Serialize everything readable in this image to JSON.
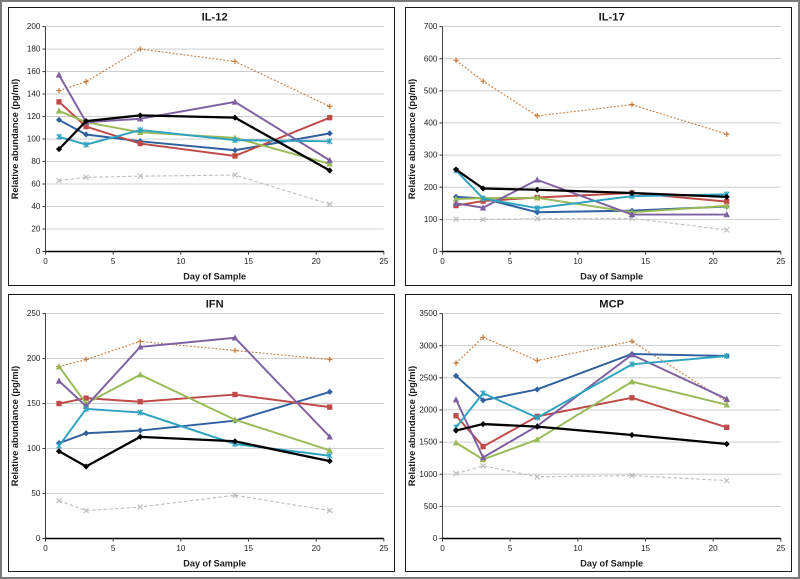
{
  "figure": {
    "background": "#ffffff",
    "outer_border_color": "#7a7a7a",
    "panel_border_color": "#1a1a1a",
    "gridline_color": "#c6c6c6",
    "axis_color": "#404040"
  },
  "chart_data": [
    {
      "type": "line",
      "title": "IL-12",
      "xlabel": "Day of Sample",
      "ylabel": "Relative abundance (pg/ml)",
      "x": [
        1,
        3,
        7,
        14,
        21
      ],
      "xlim": [
        0,
        25
      ],
      "xticks": [
        0,
        5,
        10,
        15,
        20,
        25
      ],
      "ylim": [
        0,
        200
      ],
      "ytick_step": 20,
      "grid": true,
      "legend": "none",
      "series": [
        {
          "name": "gray-dashed",
          "color": "#bfbfbf",
          "marker": "x",
          "line": "dashed",
          "values": [
            63,
            66,
            67,
            68,
            42
          ]
        },
        {
          "name": "orange-dotted",
          "color": "#c87a3b",
          "marker": "plus",
          "line": "dotted",
          "values": [
            143,
            151,
            180,
            169,
            129
          ]
        },
        {
          "name": "blue",
          "color": "#30609f",
          "marker": "diamond",
          "line": "solid",
          "values": [
            117,
            104,
            98,
            90,
            105
          ]
        },
        {
          "name": "red",
          "color": "#be4b48",
          "marker": "square",
          "line": "solid",
          "values": [
            133,
            111,
            96,
            85,
            119
          ]
        },
        {
          "name": "green",
          "color": "#9aba58",
          "marker": "triangle",
          "line": "solid",
          "values": [
            125,
            115,
            106,
            101,
            78
          ]
        },
        {
          "name": "purple",
          "color": "#7d60a0",
          "marker": "triangle",
          "line": "solid",
          "values": [
            157,
            115,
            118,
            133,
            81
          ]
        },
        {
          "name": "teal",
          "color": "#2fa3c0",
          "marker": "star",
          "line": "solid",
          "values": [
            102,
            95,
            108,
            99,
            98
          ]
        },
        {
          "name": "black",
          "color": "#000000",
          "marker": "diamond",
          "line": "solid",
          "values": [
            91,
            116,
            121,
            119,
            72
          ]
        }
      ]
    },
    {
      "type": "line",
      "title": "IL-17",
      "xlabel": "Day of Sample",
      "ylabel": "Relative abundance (pg/ml)",
      "x": [
        1,
        3,
        7,
        14,
        21
      ],
      "xlim": [
        0,
        25
      ],
      "xticks": [
        0,
        5,
        10,
        15,
        20,
        25
      ],
      "ylim": [
        0,
        700
      ],
      "ytick_step": 100,
      "grid": true,
      "legend": "none",
      "series": [
        {
          "name": "gray-dashed",
          "color": "#bfbfbf",
          "marker": "x",
          "line": "dashed",
          "values": [
            100,
            100,
            102,
            103,
            67
          ]
        },
        {
          "name": "orange-dotted",
          "color": "#c87a3b",
          "marker": "plus",
          "line": "dotted",
          "values": [
            595,
            530,
            422,
            457,
            365
          ]
        },
        {
          "name": "blue",
          "color": "#30609f",
          "marker": "diamond",
          "line": "solid",
          "values": [
            170,
            165,
            122,
            127,
            140
          ]
        },
        {
          "name": "red",
          "color": "#be4b48",
          "marker": "square",
          "line": "solid",
          "values": [
            143,
            157,
            168,
            182,
            155
          ]
        },
        {
          "name": "green",
          "color": "#9aba58",
          "marker": "triangle",
          "line": "solid",
          "values": [
            163,
            166,
            167,
            122,
            142
          ]
        },
        {
          "name": "purple",
          "color": "#7d60a0",
          "marker": "triangle",
          "line": "solid",
          "values": [
            150,
            136,
            223,
            115,
            115
          ]
        },
        {
          "name": "teal",
          "color": "#2fa3c0",
          "marker": "star",
          "line": "solid",
          "values": [
            252,
            165,
            135,
            172,
            178
          ]
        },
        {
          "name": "black",
          "color": "#000000",
          "marker": "diamond",
          "line": "solid",
          "values": [
            255,
            196,
            192,
            182,
            170
          ]
        }
      ]
    },
    {
      "type": "line",
      "title": "IFN",
      "xlabel": "Day of Sample",
      "ylabel": "Relative abundance (pg/ml)",
      "x": [
        1,
        3,
        7,
        14,
        21
      ],
      "xlim": [
        0,
        25
      ],
      "xticks": [
        0,
        5,
        10,
        15,
        20,
        25
      ],
      "ylim": [
        0,
        250
      ],
      "ytick_step": 50,
      "grid": true,
      "legend": "none",
      "series": [
        {
          "name": "gray-dashed",
          "color": "#bfbfbf",
          "marker": "x",
          "line": "dashed",
          "values": [
            42,
            31,
            35,
            48,
            31
          ]
        },
        {
          "name": "orange-dotted",
          "color": "#c87a3b",
          "marker": "plus",
          "line": "dotted",
          "values": [
            191,
            199,
            219,
            209,
            199
          ]
        },
        {
          "name": "blue",
          "color": "#30609f",
          "marker": "diamond",
          "line": "solid",
          "values": [
            106,
            117,
            120,
            131,
            163
          ]
        },
        {
          "name": "red",
          "color": "#be4b48",
          "marker": "square",
          "line": "solid",
          "values": [
            150,
            156,
            152,
            160,
            146
          ]
        },
        {
          "name": "green",
          "color": "#9aba58",
          "marker": "triangle",
          "line": "solid",
          "values": [
            191,
            150,
            182,
            132,
            98
          ]
        },
        {
          "name": "purple",
          "color": "#7d60a0",
          "marker": "triangle",
          "line": "solid",
          "values": [
            175,
            147,
            213,
            223,
            113
          ]
        },
        {
          "name": "teal",
          "color": "#2fa3c0",
          "marker": "star",
          "line": "solid",
          "values": [
            103,
            144,
            140,
            105,
            92
          ]
        },
        {
          "name": "black",
          "color": "#000000",
          "marker": "diamond",
          "line": "solid",
          "values": [
            97,
            80,
            113,
            108,
            86
          ]
        }
      ]
    },
    {
      "type": "line",
      "title": "MCP",
      "xlabel": "Day of Sample",
      "ylabel": "Relative abundance (pg/ml)",
      "x": [
        1,
        3,
        7,
        14,
        21
      ],
      "xlim": [
        0,
        25
      ],
      "xticks": [
        0,
        5,
        10,
        15,
        20,
        25
      ],
      "ylim": [
        0,
        3500
      ],
      "ytick_step": 500,
      "grid": true,
      "legend": "none",
      "series": [
        {
          "name": "gray-dashed",
          "color": "#bfbfbf",
          "marker": "x",
          "line": "dashed",
          "values": [
            1010,
            1130,
            960,
            980,
            900
          ]
        },
        {
          "name": "orange-dotted",
          "color": "#c87a3b",
          "marker": "plus",
          "line": "dotted",
          "values": [
            2730,
            3130,
            2770,
            3070,
            2130
          ]
        },
        {
          "name": "blue",
          "color": "#30609f",
          "marker": "diamond",
          "line": "solid",
          "values": [
            2530,
            2150,
            2320,
            2870,
            2840
          ]
        },
        {
          "name": "red",
          "color": "#be4b48",
          "marker": "square",
          "line": "solid",
          "values": [
            1910,
            1430,
            1900,
            2190,
            1730
          ]
        },
        {
          "name": "green",
          "color": "#9aba58",
          "marker": "triangle",
          "line": "solid",
          "values": [
            1490,
            1230,
            1540,
            2440,
            2080
          ]
        },
        {
          "name": "purple",
          "color": "#7d60a0",
          "marker": "triangle",
          "line": "solid",
          "values": [
            2160,
            1260,
            1750,
            2860,
            2170
          ]
        },
        {
          "name": "teal",
          "color": "#2fa3c0",
          "marker": "star",
          "line": "solid",
          "values": [
            1730,
            2260,
            1880,
            2710,
            2840
          ]
        },
        {
          "name": "black",
          "color": "#000000",
          "marker": "diamond",
          "line": "solid",
          "values": [
            1680,
            1780,
            1740,
            1610,
            1470
          ]
        }
      ]
    }
  ]
}
